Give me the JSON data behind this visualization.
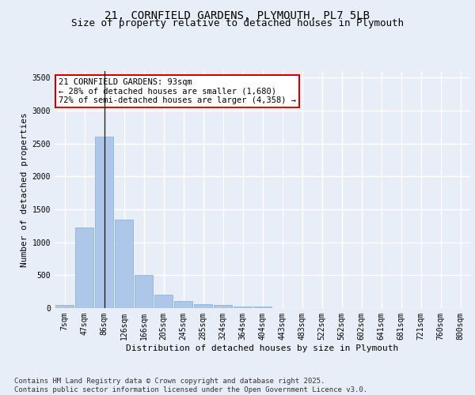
{
  "title_line1": "21, CORNFIELD GARDENS, PLYMOUTH, PL7 5LB",
  "title_line2": "Size of property relative to detached houses in Plymouth",
  "xlabel": "Distribution of detached houses by size in Plymouth",
  "ylabel": "Number of detached properties",
  "categories": [
    "7sqm",
    "47sqm",
    "86sqm",
    "126sqm",
    "166sqm",
    "205sqm",
    "245sqm",
    "285sqm",
    "324sqm",
    "364sqm",
    "404sqm",
    "443sqm",
    "483sqm",
    "522sqm",
    "562sqm",
    "602sqm",
    "641sqm",
    "681sqm",
    "721sqm",
    "760sqm",
    "800sqm"
  ],
  "bar_values": [
    50,
    1230,
    2600,
    1350,
    500,
    200,
    105,
    55,
    45,
    30,
    20,
    0,
    0,
    0,
    0,
    0,
    0,
    0,
    0,
    0,
    0
  ],
  "bar_color": "#aec6e8",
  "bar_edge_color": "#7bafd4",
  "vline_x": 2,
  "vline_color": "#222222",
  "ylim": [
    0,
    3600
  ],
  "yticks": [
    0,
    500,
    1000,
    1500,
    2000,
    2500,
    3000,
    3500
  ],
  "annotation_text": "21 CORNFIELD GARDENS: 93sqm\n← 28% of detached houses are smaller (1,680)\n72% of semi-detached houses are larger (4,358) →",
  "annotation_box_edgecolor": "#cc0000",
  "annotation_box_facecolor": "#ffffff",
  "footer_text": "Contains HM Land Registry data © Crown copyright and database right 2025.\nContains public sector information licensed under the Open Government Licence v3.0.",
  "background_color": "#e8eef8",
  "plot_background_color": "#e8eef8",
  "grid_color": "#ffffff",
  "title_fontsize": 10,
  "subtitle_fontsize": 9,
  "axis_label_fontsize": 8,
  "tick_fontsize": 7,
  "annotation_fontsize": 7.5,
  "footer_fontsize": 6.5
}
